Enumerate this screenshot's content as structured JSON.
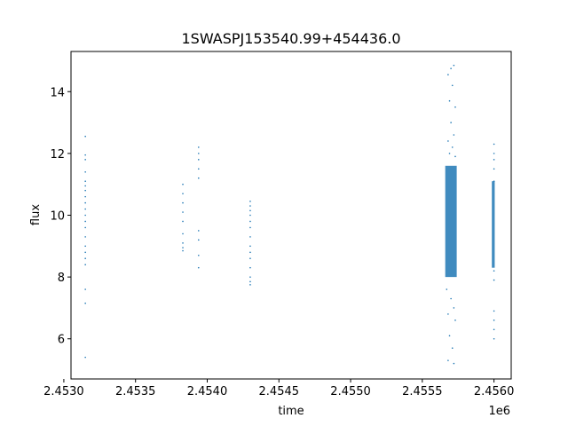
{
  "chart_data": {
    "type": "scatter",
    "title": "1SWASPJ153540.99+454436.0",
    "xlabel": "time",
    "ylabel": "flux",
    "x_offset_label": "1e6",
    "xlim": [
      2.45305,
      2.45612
    ],
    "ylim": [
      4.7,
      15.3
    ],
    "xticks": [
      2.453,
      2.4535,
      2.454,
      2.4545,
      2.455,
      2.4555,
      2.456
    ],
    "xtick_labels": [
      "2.4530",
      "2.4535",
      "2.4540",
      "2.4545",
      "2.4550",
      "2.4555",
      "2.4560"
    ],
    "yticks": [
      6,
      8,
      10,
      12,
      14
    ],
    "ytick_labels": [
      "6",
      "8",
      "10",
      "12",
      "14"
    ],
    "grid": false,
    "marker_color": "#1f77b4",
    "series": [
      {
        "values": [
          {
            "x": 2.45315,
            "y": 12.55
          },
          {
            "x": 2.45315,
            "y": 11.95
          },
          {
            "x": 2.45315,
            "y": 11.8
          },
          {
            "x": 2.45315,
            "y": 11.4
          },
          {
            "x": 2.45315,
            "y": 11.1
          },
          {
            "x": 2.45315,
            "y": 10.95
          },
          {
            "x": 2.45315,
            "y": 10.8
          },
          {
            "x": 2.45315,
            "y": 10.6
          },
          {
            "x": 2.45315,
            "y": 10.4
          },
          {
            "x": 2.45315,
            "y": 10.2
          },
          {
            "x": 2.45315,
            "y": 10.0
          },
          {
            "x": 2.45315,
            "y": 9.8
          },
          {
            "x": 2.45315,
            "y": 9.6
          },
          {
            "x": 2.45315,
            "y": 9.3
          },
          {
            "x": 2.45315,
            "y": 9.0
          },
          {
            "x": 2.45315,
            "y": 8.8
          },
          {
            "x": 2.45315,
            "y": 8.6
          },
          {
            "x": 2.45315,
            "y": 8.4
          },
          {
            "x": 2.45315,
            "y": 7.6
          },
          {
            "x": 2.45315,
            "y": 7.15
          },
          {
            "x": 2.45315,
            "y": 5.4
          },
          {
            "x": 2.45383,
            "y": 11.0
          },
          {
            "x": 2.45383,
            "y": 10.7
          },
          {
            "x": 2.45383,
            "y": 10.4
          },
          {
            "x": 2.45383,
            "y": 10.1
          },
          {
            "x": 2.45383,
            "y": 9.8
          },
          {
            "x": 2.45383,
            "y": 9.4
          },
          {
            "x": 2.45383,
            "y": 9.1
          },
          {
            "x": 2.45383,
            "y": 8.95
          },
          {
            "x": 2.45383,
            "y": 8.85
          },
          {
            "x": 2.45394,
            "y": 12.2
          },
          {
            "x": 2.45394,
            "y": 12.0
          },
          {
            "x": 2.45394,
            "y": 11.8
          },
          {
            "x": 2.45394,
            "y": 11.5
          },
          {
            "x": 2.45394,
            "y": 11.2
          },
          {
            "x": 2.45394,
            "y": 9.5
          },
          {
            "x": 2.45394,
            "y": 9.2
          },
          {
            "x": 2.45394,
            "y": 8.7
          },
          {
            "x": 2.45394,
            "y": 8.3
          },
          {
            "x": 2.4543,
            "y": 10.45
          },
          {
            "x": 2.4543,
            "y": 10.3
          },
          {
            "x": 2.4543,
            "y": 10.15
          },
          {
            "x": 2.4543,
            "y": 10.0
          },
          {
            "x": 2.4543,
            "y": 9.8
          },
          {
            "x": 2.4543,
            "y": 9.6
          },
          {
            "x": 2.4543,
            "y": 9.3
          },
          {
            "x": 2.4543,
            "y": 9.0
          },
          {
            "x": 2.4543,
            "y": 8.8
          },
          {
            "x": 2.4543,
            "y": 8.6
          },
          {
            "x": 2.4543,
            "y": 8.3
          },
          {
            "x": 2.4543,
            "y": 8.0
          },
          {
            "x": 2.4543,
            "y": 7.85
          },
          {
            "x": 2.4543,
            "y": 7.75
          },
          {
            "x": 2.45568,
            "y": 14.55
          },
          {
            "x": 2.4557,
            "y": 14.75
          },
          {
            "x": 2.45572,
            "y": 14.85
          },
          {
            "x": 2.45571,
            "y": 14.2
          },
          {
            "x": 2.45569,
            "y": 13.7
          },
          {
            "x": 2.45573,
            "y": 13.5
          },
          {
            "x": 2.4557,
            "y": 13.0
          },
          {
            "x": 2.45572,
            "y": 12.6
          },
          {
            "x": 2.45568,
            "y": 12.4
          },
          {
            "x": 2.45571,
            "y": 12.2
          },
          {
            "x": 2.45569,
            "y": 12.0
          },
          {
            "x": 2.45573,
            "y": 11.9
          },
          {
            "x": 2.45567,
            "y": 7.6
          },
          {
            "x": 2.4557,
            "y": 7.3
          },
          {
            "x": 2.45572,
            "y": 7.0
          },
          {
            "x": 2.45568,
            "y": 6.8
          },
          {
            "x": 2.45573,
            "y": 6.6
          },
          {
            "x": 2.45569,
            "y": 6.1
          },
          {
            "x": 2.45571,
            "y": 5.7
          },
          {
            "x": 2.45568,
            "y": 5.3
          },
          {
            "x": 2.45572,
            "y": 5.2
          },
          {
            "x": 2.456,
            "y": 12.3
          },
          {
            "x": 2.456,
            "y": 12.0
          },
          {
            "x": 2.456,
            "y": 11.8
          },
          {
            "x": 2.456,
            "y": 11.5
          },
          {
            "x": 2.456,
            "y": 11.1
          },
          {
            "x": 2.456,
            "y": 8.2
          },
          {
            "x": 2.456,
            "y": 7.9
          },
          {
            "x": 2.456,
            "y": 6.9
          },
          {
            "x": 2.456,
            "y": 6.6
          },
          {
            "x": 2.456,
            "y": 6.3
          },
          {
            "x": 2.456,
            "y": 6.0
          }
        ]
      }
    ],
    "dense_bands": [
      {
        "x_range": [
          2.45566,
          2.45574
        ],
        "y_range": [
          8.0,
          11.6
        ]
      },
      {
        "x_range": [
          2.455985,
          2.456005
        ],
        "y_range": [
          8.3,
          11.1
        ]
      }
    ]
  }
}
